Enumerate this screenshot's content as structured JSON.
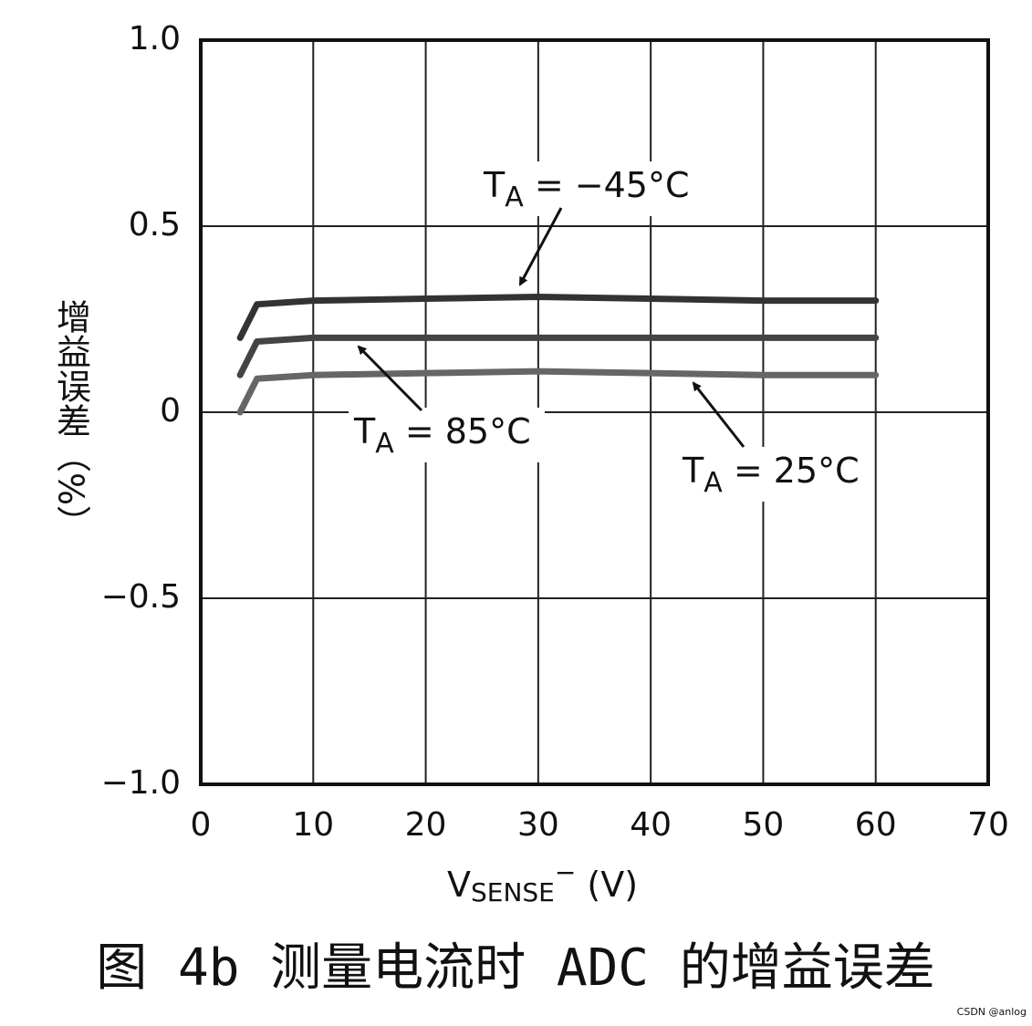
{
  "chart_data": {
    "type": "line",
    "x_label": {
      "main": "V",
      "sub": "SENSE",
      "sup": "−",
      "rest": " (V)"
    },
    "y_label": "增益误差（%）",
    "caption": "图 4b 测量电流时 ADC 的增益误差",
    "watermark": "CSDN @anlog",
    "x": [
      3.5,
      5,
      10,
      20,
      30,
      40,
      50,
      60
    ],
    "series": [
      {
        "name": {
          "main": "T",
          "sub": "A",
          "rest": " = −45°C"
        },
        "color": "#333333",
        "values": [
          0.2,
          0.29,
          0.3,
          0.305,
          0.31,
          0.305,
          0.3,
          0.3
        ]
      },
      {
        "name": {
          "main": "T",
          "sub": "A",
          "rest": " = 85°C"
        },
        "color": "#444444",
        "values": [
          0.1,
          0.19,
          0.2,
          0.2,
          0.2,
          0.2,
          0.2,
          0.2
        ]
      },
      {
        "name": {
          "main": "T",
          "sub": "A",
          "rest": " = 25°C"
        },
        "color": "#666666",
        "values": [
          0,
          0.09,
          0.1,
          0.105,
          0.11,
          0.105,
          0.1,
          0.1
        ]
      }
    ],
    "xlim": [
      0,
      70
    ],
    "xticks": [
      0,
      10,
      20,
      30,
      40,
      50,
      60,
      70
    ],
    "ylim": [
      -1,
      1
    ],
    "yticks": [
      {
        "value": -1,
        "label": "−1.0"
      },
      {
        "value": -0.5,
        "label": "−0.5"
      },
      0,
      0.5,
      {
        "value": 1,
        "label": "1.0"
      }
    ],
    "grid": true
  }
}
